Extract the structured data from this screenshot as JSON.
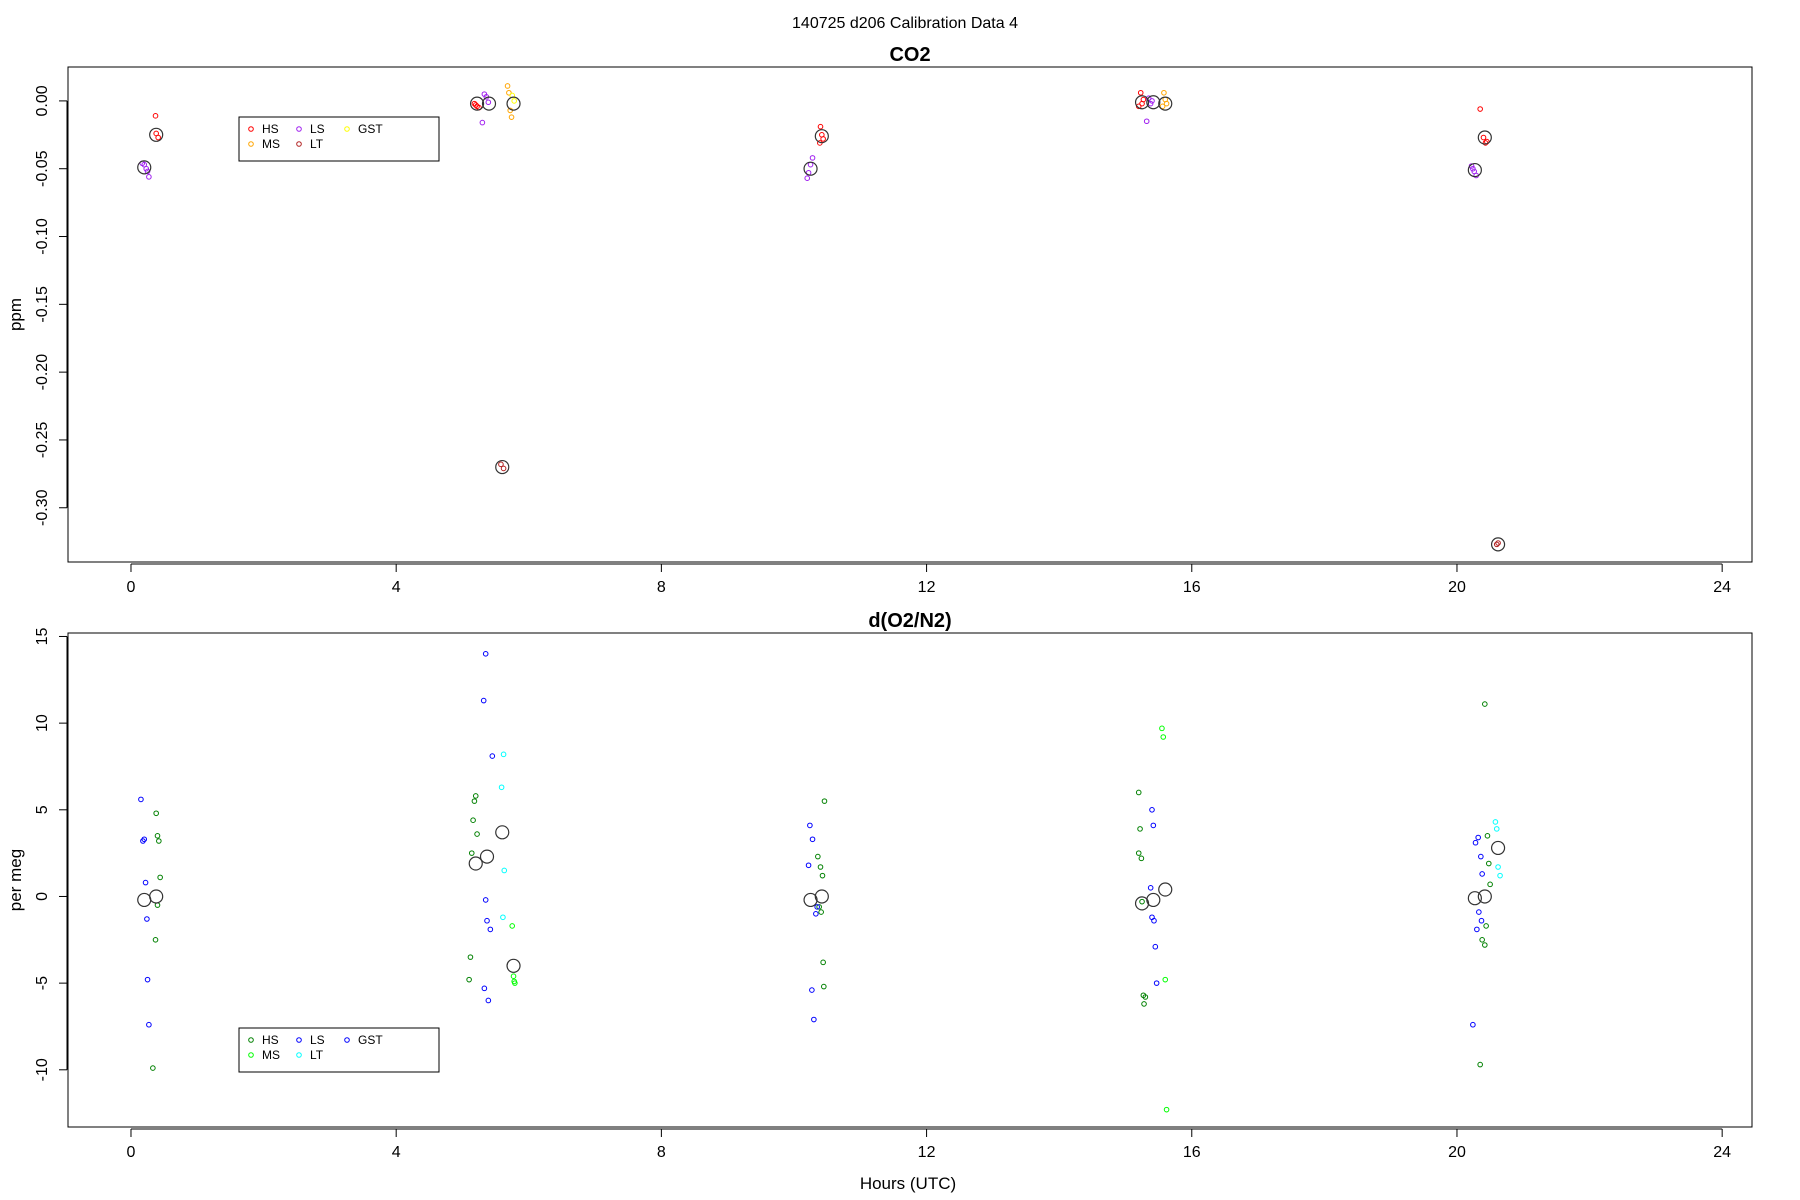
{
  "figure": {
    "suptitle": "140725   d206   Calibration Data 4"
  },
  "colors": {
    "HS_top": "#ff0000",
    "MS_top": "#ffa500",
    "LS_top": "#a020f0",
    "LT_top": "#b22222",
    "GST_top": "#ffff00",
    "HS_bottom": "#008000",
    "MS_bottom": "#00ff00",
    "LS_bottom": "#0000ff",
    "LT_bottom": "#00ffff",
    "GST_bottom": "#0000ff",
    "mean_marker": "#333333"
  },
  "chart_data": [
    {
      "type": "scatter",
      "title": "CO2",
      "xlabel": "",
      "ylabel": "ppm",
      "xlim": [
        -0.95,
        24.45
      ],
      "ylim": [
        -0.34,
        0.025
      ],
      "xticks": [
        0,
        4,
        8,
        12,
        16,
        20,
        24
      ],
      "yticks": [
        0.0,
        -0.05,
        -0.1,
        -0.15,
        -0.2,
        -0.25,
        -0.3
      ],
      "ytick_labels": [
        "0.00",
        "-0.05",
        "-0.10",
        "-0.15",
        "-0.20",
        "-0.25",
        "-0.30"
      ],
      "grid": false,
      "legend": {
        "placement": "upper-left",
        "columns": [
          [
            "HS",
            "MS"
          ],
          [
            "LS",
            "LT"
          ],
          [
            "GST"
          ]
        ],
        "entries": [
          {
            "label": "HS",
            "color": "#ff0000"
          },
          {
            "label": "MS",
            "color": "#ffa500"
          },
          {
            "label": "LS",
            "color": "#a020f0"
          },
          {
            "label": "LT",
            "color": "#b22222"
          },
          {
            "label": "GST",
            "color": "#ffff00"
          }
        ]
      },
      "series": [
        {
          "name": "HS",
          "color": "#ff0000",
          "points": [
            [
              0.37,
              -0.011
            ],
            [
              0.38,
              -0.024
            ],
            [
              0.41,
              -0.027
            ],
            [
              5.18,
              -0.002
            ],
            [
              5.2,
              -0.003
            ],
            [
              5.22,
              -0.004
            ],
            [
              5.25,
              -0.005
            ],
            [
              10.4,
              -0.019
            ],
            [
              10.42,
              -0.025
            ],
            [
              10.44,
              -0.028
            ],
            [
              10.39,
              -0.031
            ],
            [
              15.23,
              0.006
            ],
            [
              15.25,
              -0.002
            ],
            [
              15.2,
              -0.004
            ],
            [
              15.27,
              0.001
            ],
            [
              20.35,
              -0.006
            ],
            [
              20.4,
              -0.027
            ],
            [
              20.45,
              -0.03
            ],
            [
              20.43,
              -0.031
            ]
          ]
        },
        {
          "name": "MS",
          "color": "#ffa500",
          "points": [
            [
              5.68,
              0.011
            ],
            [
              5.7,
              0.006
            ],
            [
              5.72,
              -0.007
            ],
            [
              5.74,
              -0.012
            ],
            [
              15.58,
              0.006
            ],
            [
              15.6,
              0.001
            ],
            [
              15.62,
              -0.002
            ],
            [
              15.56,
              -0.004
            ]
          ]
        },
        {
          "name": "LS",
          "color": "#a020f0",
          "points": [
            [
              0.17,
              -0.046
            ],
            [
              0.2,
              -0.047
            ],
            [
              0.23,
              -0.05
            ],
            [
              0.27,
              -0.056
            ],
            [
              0.25,
              -0.052
            ],
            [
              5.3,
              -0.016
            ],
            [
              5.33,
              0.005
            ],
            [
              5.36,
              0.003
            ],
            [
              5.39,
              -0.001
            ],
            [
              10.2,
              -0.057
            ],
            [
              10.25,
              -0.047
            ],
            [
              10.28,
              -0.042
            ],
            [
              10.22,
              -0.053
            ],
            [
              15.32,
              -0.015
            ],
            [
              15.35,
              0.002
            ],
            [
              15.38,
              -0.002
            ],
            [
              15.4,
              0.0
            ],
            [
              20.22,
              -0.048
            ],
            [
              20.26,
              -0.052
            ],
            [
              20.29,
              -0.055
            ],
            [
              20.24,
              -0.05
            ]
          ]
        },
        {
          "name": "LT",
          "color": "#b22222",
          "points": [
            [
              5.58,
              -0.268
            ],
            [
              5.62,
              -0.271
            ],
            [
              20.62,
              -0.326
            ],
            [
              20.6,
              -0.327
            ]
          ]
        },
        {
          "name": "GST",
          "color": "#ffff00",
          "points": [
            [
              5.75,
              0.004
            ],
            [
              5.78,
              0.0
            ]
          ]
        }
      ],
      "means": [
        [
          0.2,
          -0.049
        ],
        [
          0.38,
          -0.025
        ],
        [
          5.22,
          -0.002
        ],
        [
          5.4,
          -0.002
        ],
        [
          5.6,
          -0.27
        ],
        [
          5.77,
          -0.002
        ],
        [
          10.25,
          -0.05
        ],
        [
          10.42,
          -0.026
        ],
        [
          15.25,
          -0.001
        ],
        [
          15.42,
          -0.001
        ],
        [
          15.6,
          -0.002
        ],
        [
          20.27,
          -0.051
        ],
        [
          20.42,
          -0.027
        ],
        [
          20.62,
          -0.327
        ]
      ]
    },
    {
      "type": "scatter",
      "title": "d(O2/N2)",
      "xlabel": "Hours (UTC)",
      "ylabel": "per meg",
      "xlim": [
        -0.95,
        24.45
      ],
      "ylim": [
        -13.3,
        15.2
      ],
      "xticks": [
        0,
        4,
        8,
        12,
        16,
        20,
        24
      ],
      "yticks": [
        15,
        10,
        5,
        0,
        -5,
        -10
      ],
      "ytick_labels": [
        "15",
        "10",
        "5",
        "0",
        "-5",
        "-10"
      ],
      "grid": false,
      "legend": {
        "placement": "lower-left",
        "columns": [
          [
            "HS",
            "MS"
          ],
          [
            "LS",
            "LT"
          ],
          [
            "GST"
          ]
        ],
        "entries": [
          {
            "label": "HS",
            "color": "#008000"
          },
          {
            "label": "MS",
            "color": "#00ff00"
          },
          {
            "label": "LS",
            "color": "#0000ff"
          },
          {
            "label": "LT",
            "color": "#00ffff"
          },
          {
            "label": "GST",
            "color": "#0000ff"
          }
        ]
      },
      "series": [
        {
          "name": "HS",
          "color": "#008000",
          "points": [
            [
              0.38,
              4.8
            ],
            [
              0.4,
              3.5
            ],
            [
              0.42,
              3.2
            ],
            [
              0.44,
              1.1
            ],
            [
              0.4,
              -0.5
            ],
            [
              0.37,
              -2.5
            ],
            [
              0.33,
              -9.9
            ],
            [
              5.18,
              5.5
            ],
            [
              5.2,
              5.8
            ],
            [
              5.16,
              4.4
            ],
            [
              5.22,
              3.6
            ],
            [
              5.14,
              2.5
            ],
            [
              5.12,
              -3.5
            ],
            [
              5.1,
              -4.8
            ],
            [
              10.36,
              2.3
            ],
            [
              10.4,
              1.7
            ],
            [
              10.43,
              1.2
            ],
            [
              10.38,
              -0.6
            ],
            [
              10.41,
              -0.9
            ],
            [
              10.44,
              -3.8
            ],
            [
              10.45,
              -5.2
            ],
            [
              10.46,
              5.5
            ],
            [
              15.2,
              6.0
            ],
            [
              15.22,
              3.9
            ],
            [
              15.24,
              2.2
            ],
            [
              15.2,
              2.5
            ],
            [
              15.25,
              -0.3
            ],
            [
              15.27,
              -5.7
            ],
            [
              15.3,
              -5.8
            ],
            [
              15.28,
              -6.2
            ],
            [
              20.42,
              11.1
            ],
            [
              20.46,
              3.5
            ],
            [
              20.48,
              1.9
            ],
            [
              20.5,
              0.7
            ],
            [
              20.44,
              -1.7
            ],
            [
              20.38,
              -2.5
            ],
            [
              20.42,
              -2.8
            ],
            [
              20.35,
              -9.7
            ]
          ]
        },
        {
          "name": "MS",
          "color": "#00ff00",
          "points": [
            [
              5.75,
              -1.7
            ],
            [
              5.77,
              -4.6
            ],
            [
              5.78,
              -4.9
            ],
            [
              5.79,
              -5.0
            ],
            [
              15.55,
              9.7
            ],
            [
              15.57,
              9.2
            ],
            [
              15.6,
              -4.8
            ],
            [
              15.62,
              -12.3
            ]
          ]
        },
        {
          "name": "LS",
          "color": "#0000ff",
          "points": [
            [
              0.15,
              5.6
            ],
            [
              0.18,
              3.2
            ],
            [
              0.2,
              3.3
            ],
            [
              0.22,
              0.8
            ],
            [
              0.24,
              -1.3
            ],
            [
              0.25,
              -4.8
            ],
            [
              0.27,
              -7.4
            ],
            [
              5.35,
              14.0
            ],
            [
              5.32,
              11.3
            ],
            [
              5.45,
              8.1
            ],
            [
              5.35,
              -0.2
            ],
            [
              5.37,
              -1.4
            ],
            [
              5.42,
              -1.9
            ],
            [
              5.33,
              -5.3
            ],
            [
              5.39,
              -6.0
            ],
            [
              10.24,
              4.1
            ],
            [
              10.28,
              3.3
            ],
            [
              10.22,
              1.8
            ],
            [
              10.35,
              -0.6
            ],
            [
              10.33,
              -1.0
            ],
            [
              10.27,
              -5.4
            ],
            [
              10.3,
              -7.1
            ],
            [
              15.4,
              5.0
            ],
            [
              15.42,
              4.1
            ],
            [
              15.38,
              0.5
            ],
            [
              15.4,
              -1.2
            ],
            [
              15.43,
              -1.4
            ],
            [
              15.45,
              -2.9
            ],
            [
              15.47,
              -5.0
            ],
            [
              20.28,
              3.1
            ],
            [
              20.32,
              3.4
            ],
            [
              20.36,
              2.3
            ],
            [
              20.38,
              1.3
            ],
            [
              20.33,
              -0.9
            ],
            [
              20.3,
              -1.9
            ],
            [
              20.37,
              -1.4
            ],
            [
              20.24,
              -7.4
            ]
          ]
        },
        {
          "name": "LT",
          "color": "#00ffff",
          "points": [
            [
              5.62,
              8.2
            ],
            [
              5.59,
              6.3
            ],
            [
              5.63,
              1.5
            ],
            [
              5.61,
              -1.2
            ],
            [
              20.58,
              4.3
            ],
            [
              20.6,
              3.9
            ],
            [
              20.62,
              1.7
            ],
            [
              20.65,
              1.2
            ]
          ]
        },
        {
          "name": "GST",
          "color": "#0000ff",
          "points": []
        }
      ],
      "means": [
        [
          0.2,
          -0.2
        ],
        [
          0.38,
          0.0
        ],
        [
          5.2,
          1.9
        ],
        [
          5.37,
          2.3
        ],
        [
          5.6,
          3.7
        ],
        [
          5.77,
          -4.0
        ],
        [
          10.25,
          -0.2
        ],
        [
          10.42,
          0.0
        ],
        [
          15.25,
          -0.4
        ],
        [
          15.42,
          -0.2
        ],
        [
          15.6,
          0.4
        ],
        [
          20.27,
          -0.1
        ],
        [
          20.42,
          0.0
        ],
        [
          20.62,
          2.8
        ]
      ]
    }
  ]
}
